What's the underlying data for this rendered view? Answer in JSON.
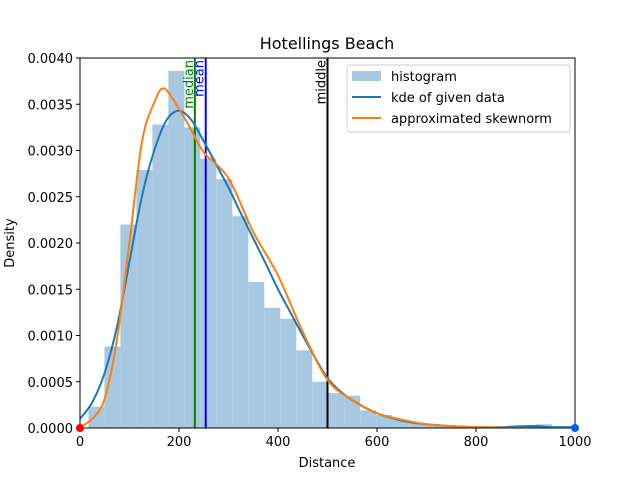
{
  "chart_data": {
    "type": "bar",
    "title": "Hotellings Beach",
    "xlabel": "Distance",
    "ylabel": "Density",
    "xlim": [
      0,
      1000
    ],
    "ylim": [
      0,
      0.004
    ],
    "xticks": [
      "0",
      "200",
      "400",
      "600",
      "800",
      "1000"
    ],
    "xtick_values": [
      0,
      200,
      400,
      600,
      800,
      1000
    ],
    "yticks": [
      "0.0000",
      "0.0005",
      "0.0010",
      "0.0015",
      "0.0020",
      "0.0025",
      "0.0030",
      "0.0035",
      "0.0040"
    ],
    "ytick_values": [
      0,
      0.0005,
      0.001,
      0.0015,
      0.002,
      0.0025,
      0.003,
      0.0035,
      0.004
    ],
    "grid": false,
    "legend_position": "top-right",
    "histogram": {
      "name": "histogram",
      "color": "#a6c8e0",
      "bin_start": 17,
      "bin_width": 32.3,
      "values": [
        0.00023,
        0.00088,
        0.0022,
        0.00279,
        0.00328,
        0.00386,
        0.00325,
        0.00291,
        0.00269,
        0.00229,
        0.00158,
        0.0013,
        0.00118,
        0.00084,
        0.0005,
        0.00038,
        0.00035,
        0.00019,
        0.00014,
        9e-05,
        6e-05,
        4e-05,
        3e-05,
        2e-05,
        1e-05,
        0.0,
        1e-05,
        0.0,
        4e-05,
        1e-05
      ]
    },
    "series": [
      {
        "name": "kde of given data",
        "color": "#1f77b4",
        "x": [
          0,
          25,
          50,
          75,
          100,
          125,
          150,
          175,
          200,
          225,
          250,
          275,
          300,
          325,
          350,
          375,
          400,
          425,
          450,
          475,
          500,
          525,
          550,
          600,
          650,
          700,
          750,
          800,
          850,
          900,
          925,
          950,
          1000
        ],
        "y": [
          0.0001,
          0.00028,
          0.0006,
          0.0011,
          0.0018,
          0.0025,
          0.003,
          0.00333,
          0.00343,
          0.00333,
          0.0031,
          0.00285,
          0.0026,
          0.00232,
          0.00205,
          0.00178,
          0.0015,
          0.00125,
          0.001,
          0.00076,
          0.00054,
          0.0004,
          0.0003,
          0.00016,
          8e-05,
          4e-05,
          2e-05,
          1e-05,
          1e-05,
          2e-05,
          2e-05,
          1e-05,
          1e-05
        ]
      },
      {
        "name": "approximated skewnorm",
        "color": "#ff7f0e",
        "x": [
          0,
          25,
          50,
          75,
          100,
          125,
          150,
          170,
          200,
          225,
          250,
          300,
          350,
          400,
          450,
          500,
          550,
          600,
          650,
          700,
          750,
          800,
          900,
          1000
        ],
        "y": [
          1e-05,
          0.0001,
          0.00032,
          0.00097,
          0.00201,
          0.00309,
          0.00352,
          0.00367,
          0.00345,
          0.00322,
          0.00298,
          0.0027,
          0.00212,
          0.00165,
          0.00104,
          0.00052,
          0.0003,
          0.00016,
          9e-05,
          4e-05,
          2e-05,
          1e-05,
          0.0,
          0.0
        ]
      }
    ],
    "vlines": [
      {
        "label": "median",
        "x": 232,
        "color": "#008000"
      },
      {
        "label": "mean",
        "x": 254,
        "color": "#0000ff"
      },
      {
        "label": "middle",
        "x": 500,
        "color": "#000000"
      }
    ],
    "points": [
      {
        "x": 0,
        "y": 0,
        "color": "#ff0000"
      },
      {
        "x": 1000,
        "y": 0,
        "color": "#0060ff"
      }
    ]
  }
}
